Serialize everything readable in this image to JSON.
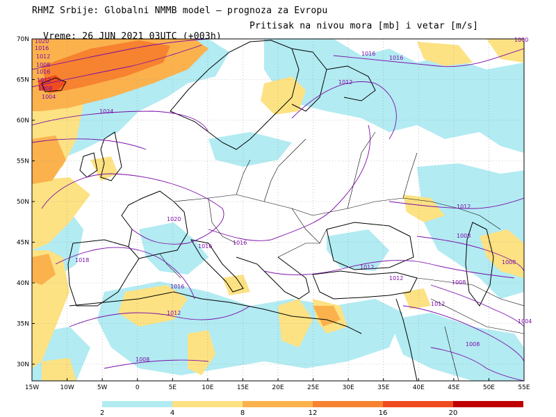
{
  "header": {
    "line1": "RHMZ Srbije: Globalni NMMB model — prognoza za Evropu",
    "line2_left": "Vreme: 26 JUN 2021 03UTC (+003h)",
    "line2_right": "Pritisak na nivou mora [mb] i vetar [m/s]"
  },
  "map": {
    "lat_labels": [
      "70N",
      "65N",
      "60N",
      "55N",
      "50N",
      "45N",
      "40N",
      "35N",
      "30N"
    ],
    "lon_labels": [
      "15W",
      "10W",
      "5W",
      "0",
      "5E",
      "10E",
      "15E",
      "20E",
      "25E",
      "30E",
      "35E",
      "40E",
      "45E",
      "50E",
      "55E"
    ],
    "isobar_labels": [
      {
        "text": "1024"
      },
      {
        "text": "1020"
      },
      {
        "text": "1016"
      },
      {
        "text": "1016"
      },
      {
        "text": "1012"
      },
      {
        "text": "1016"
      },
      {
        "text": "1018"
      },
      {
        "text": "1016"
      },
      {
        "text": "1012"
      },
      {
        "text": "1008"
      },
      {
        "text": "1012"
      },
      {
        "text": "1012"
      },
      {
        "text": "1008"
      },
      {
        "text": "1012"
      },
      {
        "text": "1008"
      },
      {
        "text": "1012"
      },
      {
        "text": "1008"
      },
      {
        "text": "1016"
      },
      {
        "text": "1004"
      },
      {
        "text": "1008"
      },
      {
        "text": "1012"
      },
      {
        "text": "1016"
      },
      {
        "text": "1008"
      },
      {
        "text": "1012"
      },
      {
        "text": "1016"
      },
      {
        "text": "1020"
      },
      {
        "text": "1000"
      },
      {
        "text": "1004"
      },
      {
        "text": "1008"
      }
    ],
    "colors": {
      "land_bg": "#ffffff",
      "light_blue": "#b2ebf2",
      "light_yellow": "#fde283",
      "orange_light": "#fbb24d",
      "orange": "#f7822f",
      "red_orange": "#f04b1e",
      "dark_red": "#c00000",
      "coast": "#000000",
      "isobar": "#7a0aa8"
    }
  },
  "colorbar": {
    "labels": [
      "2",
      "4",
      "8",
      "12",
      "16",
      "20"
    ],
    "colors": [
      "#b2ebf2",
      "#fde283",
      "#fbb24d",
      "#f7822f",
      "#f04b1e",
      "#c00000"
    ]
  }
}
